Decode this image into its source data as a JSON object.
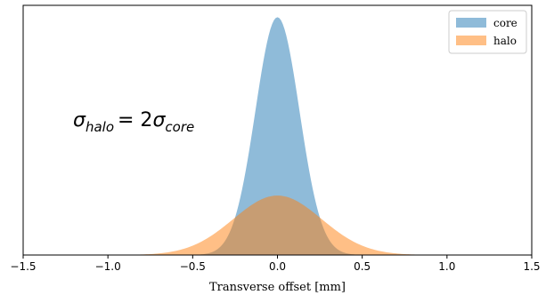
{
  "chart_data": {
    "type": "area",
    "xlabel": "Transverse offset [mm]",
    "ylabel": "",
    "xlim": [
      -1.5,
      1.5
    ],
    "ylim": [
      0,
      1.05
    ],
    "grid": false,
    "legend_position": "top-right",
    "x_ticks": [
      -1.5,
      -1.0,
      -0.5,
      0.0,
      0.5,
      1.0,
      1.5
    ],
    "x_tick_labels": [
      "−1.5",
      "−1.0",
      "−0.5",
      "0.0",
      "0.5",
      "1.0",
      "1.5"
    ],
    "x_range_plotted": [
      -1.25,
      1.25
    ],
    "annotation": {
      "sigma": "σ",
      "sub_halo": "halo",
      "equals": "= 2",
      "sub_core": "core"
    },
    "series": [
      {
        "name": "core",
        "distribution": "gaussian",
        "mean": 0.0,
        "sigma": 0.13,
        "peak": 1.0,
        "color": "#1f77b4",
        "alpha": 0.5
      },
      {
        "name": "halo",
        "distribution": "gaussian",
        "mean": 0.0,
        "sigma": 0.26,
        "peak": 0.25,
        "color": "#ff7f0e",
        "alpha": 0.5
      }
    ]
  }
}
